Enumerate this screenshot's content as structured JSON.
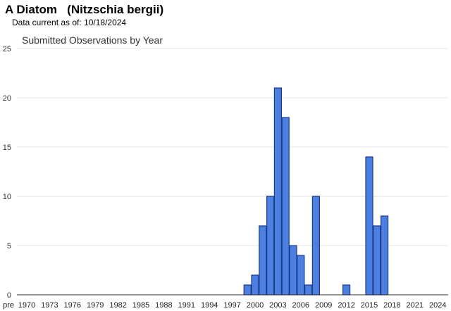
{
  "header": {
    "title": "A Diatom   (Nitzschia bergii)",
    "data_current_label": "Data current as of: 10/18/2024"
  },
  "colors": {
    "bar_fill": "#4c7fe0",
    "bar_stroke": "#1a3a8a",
    "grid": "#e3e3e3",
    "axis": "#333333"
  },
  "chart_data": {
    "type": "bar",
    "title": "Submitted Observations by Year",
    "xlabel": "",
    "ylabel": "",
    "ylim": [
      0,
      25
    ],
    "yticks": [
      0,
      5,
      10,
      15,
      20,
      25
    ],
    "grid": true,
    "xtick_labels": [
      "pre",
      "1970",
      "1973",
      "1976",
      "1979",
      "1982",
      "1985",
      "1988",
      "1991",
      "1994",
      "1997",
      "2000",
      "2003",
      "2006",
      "2009",
      "2012",
      "2015",
      "2018",
      "2021",
      "2024"
    ],
    "categories": [
      "1999",
      "2000",
      "2001",
      "2002",
      "2003",
      "2004",
      "2005",
      "2006",
      "2007",
      "2008",
      "2012",
      "2015",
      "2016",
      "2017"
    ],
    "values": [
      1,
      2,
      7,
      10,
      21,
      18,
      5,
      4,
      1,
      10,
      1,
      14,
      7,
      8
    ]
  }
}
